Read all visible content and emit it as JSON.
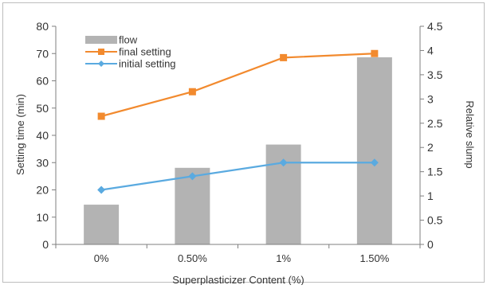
{
  "chart_data": {
    "type": "bar",
    "categories": [
      "0%",
      "0.50%",
      "1%",
      "1.50%"
    ],
    "xlabel": "Superplasticizer Content (%)",
    "ylabel": "Setting time  (min)",
    "y2label": "Relative slump",
    "ylim": [
      0,
      80
    ],
    "y2lim": [
      0,
      4.5
    ],
    "yticks": [
      "0",
      "10",
      "20",
      "30",
      "40",
      "50",
      "60",
      "70",
      "80"
    ],
    "y2ticks": [
      "0",
      "0.5",
      "1",
      "1.5",
      "2",
      "2.5",
      "3",
      "3.5",
      "4",
      "4.5"
    ],
    "grid": false,
    "legend_position": "top-left",
    "series": [
      {
        "name": "flow",
        "type": "bar",
        "axis": "right",
        "values": [
          0.82,
          1.58,
          2.06,
          3.86
        ],
        "color": "#b3b3b3"
      },
      {
        "name": "final setting",
        "type": "line",
        "axis": "left",
        "values": [
          47,
          56,
          68.5,
          70
        ],
        "color": "#f28a2e",
        "marker": "square"
      },
      {
        "name": "initial setting",
        "type": "line",
        "axis": "left",
        "values": [
          20,
          25,
          30,
          30
        ],
        "color": "#5aaae0",
        "marker": "diamond"
      }
    ]
  }
}
